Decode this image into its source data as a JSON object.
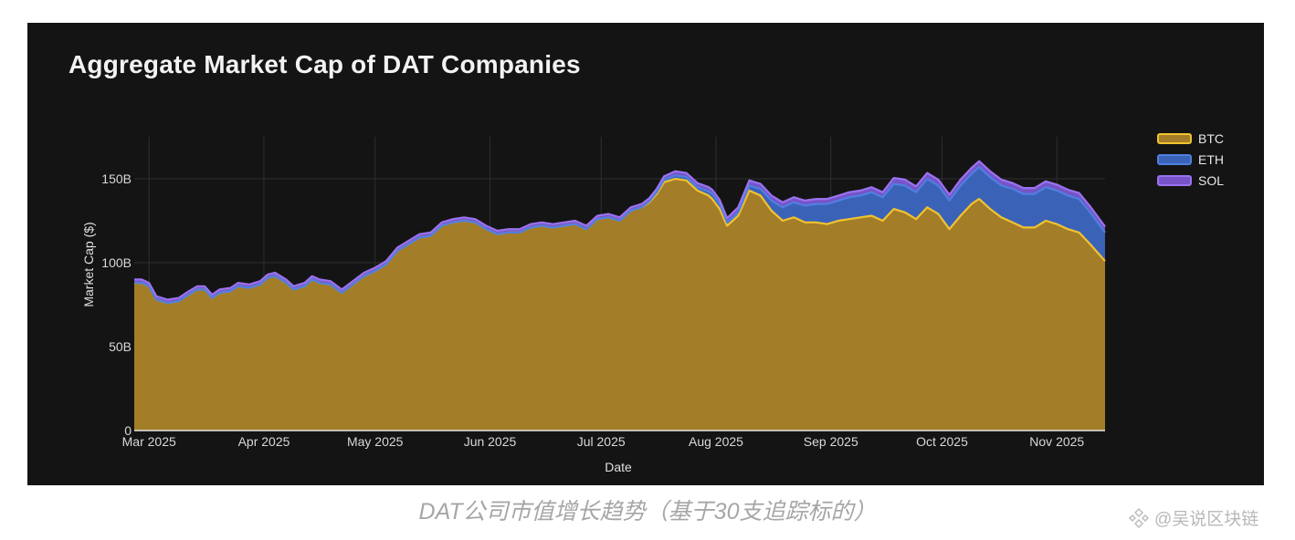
{
  "colors": {
    "background": "#141414",
    "grid": "#2f2f2f",
    "btc_fill": "#a37d28",
    "btc_line": "#f2c22e",
    "eth_fill": "#3a63b8",
    "eth_line": "#4f7fe0",
    "sol_fill": "#7654c8",
    "sol_line": "#9a72f0"
  },
  "caption": "DAT公司市值增长趋势（基于30支追踪标的）",
  "watermark": {
    "text": "@吴说区块链",
    "icon": "binance-diamond-icon"
  },
  "chart_data": {
    "type": "area",
    "stacked": true,
    "title": "Aggregate Market Cap of DAT Companies",
    "xlabel": "Date",
    "ylabel": "Market Cap ($)",
    "ylim": [
      0,
      175
    ],
    "y_unit": "B",
    "y_ticks": [
      0,
      50,
      100,
      150
    ],
    "y_tick_labels": [
      "0",
      "50B",
      "100B",
      "150B"
    ],
    "x_range": [
      "2025-02-25",
      "2025-11-14"
    ],
    "x_ticks": [
      "2025-03-01",
      "2025-04-01",
      "2025-05-01",
      "2025-06-01",
      "2025-07-01",
      "2025-08-01",
      "2025-09-01",
      "2025-10-01",
      "2025-11-01"
    ],
    "x_tick_labels": [
      "Mar 2025",
      "Apr 2025",
      "May 2025",
      "Jun 2025",
      "Jul 2025",
      "Aug 2025",
      "Sep 2025",
      "Oct 2025",
      "Nov 2025"
    ],
    "grid": true,
    "legend_position": "right",
    "x": [
      "2025-02-25",
      "2025-02-27",
      "2025-03-01",
      "2025-03-03",
      "2025-03-06",
      "2025-03-09",
      "2025-03-11",
      "2025-03-14",
      "2025-03-16",
      "2025-03-18",
      "2025-03-20",
      "2025-03-23",
      "2025-03-25",
      "2025-03-28",
      "2025-03-31",
      "2025-04-02",
      "2025-04-04",
      "2025-04-07",
      "2025-04-09",
      "2025-04-12",
      "2025-04-14",
      "2025-04-16",
      "2025-04-19",
      "2025-04-22",
      "2025-04-25",
      "2025-04-28",
      "2025-05-01",
      "2025-05-04",
      "2025-05-07",
      "2025-05-10",
      "2025-05-13",
      "2025-05-16",
      "2025-05-19",
      "2025-05-22",
      "2025-05-25",
      "2025-05-28",
      "2025-05-31",
      "2025-06-03",
      "2025-06-06",
      "2025-06-09",
      "2025-06-12",
      "2025-06-15",
      "2025-06-18",
      "2025-06-21",
      "2025-06-24",
      "2025-06-27",
      "2025-06-30",
      "2025-07-03",
      "2025-07-06",
      "2025-07-09",
      "2025-07-12",
      "2025-07-14",
      "2025-07-16",
      "2025-07-18",
      "2025-07-21",
      "2025-07-24",
      "2025-07-27",
      "2025-07-30",
      "2025-07-31",
      "2025-08-02",
      "2025-08-04",
      "2025-08-07",
      "2025-08-10",
      "2025-08-13",
      "2025-08-16",
      "2025-08-19",
      "2025-08-22",
      "2025-08-25",
      "2025-08-28",
      "2025-08-31",
      "2025-09-03",
      "2025-09-06",
      "2025-09-09",
      "2025-09-12",
      "2025-09-15",
      "2025-09-18",
      "2025-09-21",
      "2025-09-24",
      "2025-09-27",
      "2025-09-30",
      "2025-10-03",
      "2025-10-06",
      "2025-10-09",
      "2025-10-11",
      "2025-10-14",
      "2025-10-17",
      "2025-10-20",
      "2025-10-23",
      "2025-10-26",
      "2025-10-29",
      "2025-11-01",
      "2025-11-04",
      "2025-11-07",
      "2025-11-10",
      "2025-11-12",
      "2025-11-14"
    ],
    "series": [
      {
        "name": "BTC",
        "values": [
          88,
          88,
          86,
          78,
          76,
          77,
          80,
          84,
          84,
          79,
          82,
          83,
          86,
          85,
          87,
          91,
          92,
          88,
          84,
          86,
          90,
          88,
          87,
          82,
          87,
          92,
          95,
          99,
          107,
          111,
          115,
          116,
          122,
          124,
          125,
          124,
          120,
          117,
          118,
          118,
          121,
          122,
          121,
          122,
          123,
          120,
          126,
          127,
          125,
          131,
          133,
          136,
          141,
          148,
          150,
          149,
          143,
          140,
          138,
          132,
          122,
          128,
          143,
          140,
          131,
          125,
          127,
          124,
          124,
          123,
          125,
          126,
          127,
          128,
          125,
          132,
          130,
          126,
          133,
          129,
          120,
          128,
          135,
          138,
          132,
          127,
          124,
          121,
          121,
          125,
          123,
          120,
          118,
          111,
          106,
          101
        ]
      },
      {
        "name": "ETH",
        "values": [
          0,
          0,
          0,
          0,
          0,
          0,
          0,
          0,
          0,
          0,
          0,
          0,
          0,
          0,
          0,
          0,
          0,
          0,
          0,
          0,
          0,
          0,
          0,
          0,
          0,
          0,
          0,
          0,
          0,
          0,
          0,
          0,
          0,
          0,
          0,
          0,
          0,
          0,
          0,
          0,
          0,
          0,
          0,
          0,
          0,
          0,
          0,
          0,
          0,
          0,
          0,
          0.5,
          1,
          1.5,
          2,
          2,
          2,
          2.5,
          3,
          3,
          2,
          2,
          3,
          4,
          6,
          8,
          9,
          10,
          11,
          12,
          12,
          13,
          13,
          14,
          14,
          15,
          16,
          16,
          17,
          17,
          17,
          18,
          18,
          19,
          19,
          19,
          20,
          20,
          20,
          20,
          20,
          20,
          20,
          19,
          18,
          17
        ]
      },
      {
        "name": "SOL",
        "values": [
          2,
          2,
          2,
          2,
          2,
          2,
          2,
          2,
          2,
          2,
          2,
          2,
          2,
          2,
          2,
          2,
          2,
          2,
          2,
          2,
          2,
          2,
          2,
          2,
          2,
          2,
          2,
          2,
          2,
          2,
          2,
          2,
          2,
          2,
          2,
          2,
          2,
          2,
          2,
          2,
          2,
          2,
          2,
          2,
          2,
          2,
          2,
          2,
          2,
          2,
          2,
          2,
          2,
          2,
          2.5,
          2.5,
          2.5,
          2.5,
          2.5,
          2.5,
          2.5,
          3,
          3,
          3,
          3,
          3,
          3,
          3,
          3,
          3,
          3,
          3,
          3,
          3,
          3,
          3.5,
          3.5,
          3.5,
          3.5,
          3.5,
          3.5,
          3.5,
          3.5,
          3.5,
          3.5,
          3.5,
          3.5,
          3.5,
          3.5,
          3.5,
          3.5,
          3.5,
          3.5,
          3.5,
          3.5,
          3.5
        ]
      }
    ]
  }
}
